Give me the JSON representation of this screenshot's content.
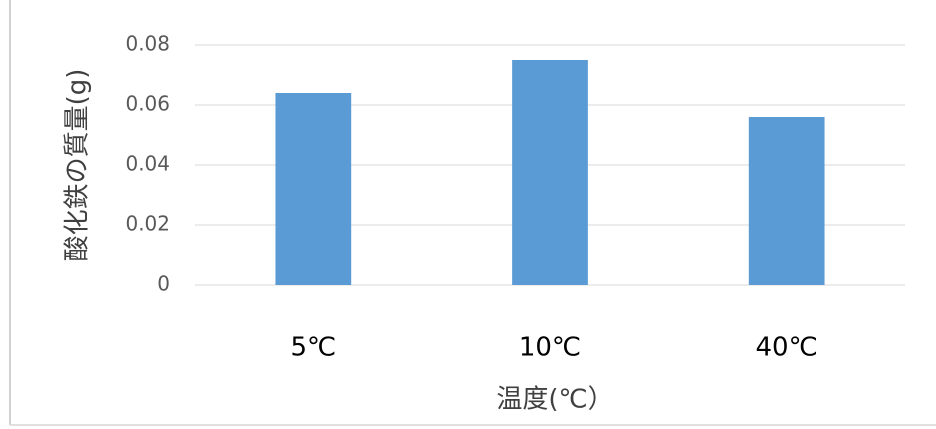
{
  "chart_data": {
    "type": "bar",
    "y_label": "酸化鉄の質量(g)",
    "x_label": "温度(℃）",
    "categories": [
      "5℃",
      "10℃",
      "40℃"
    ],
    "values": [
      0.064,
      0.075,
      0.056
    ],
    "color": "#5b9bd5",
    "ylim": [
      0,
      0.08
    ],
    "yticks": [
      0,
      0.02,
      0.04,
      0.06,
      0.08
    ],
    "grid": true
  }
}
